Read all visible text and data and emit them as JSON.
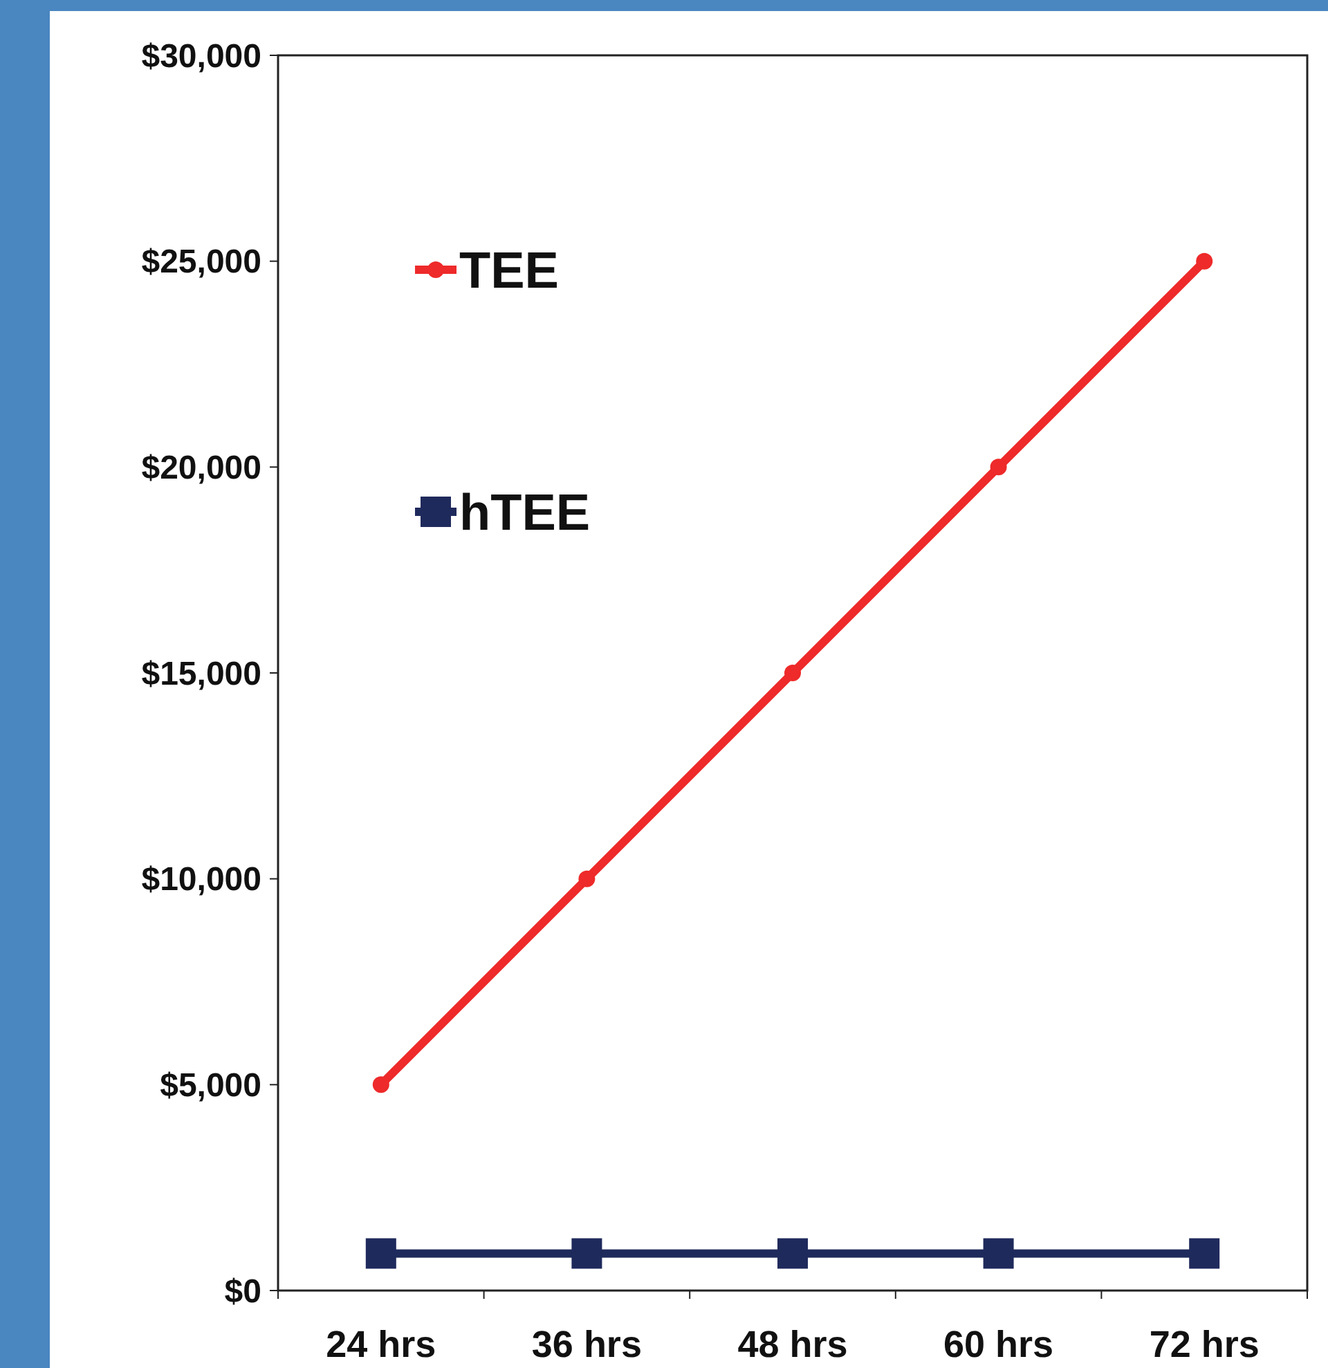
{
  "chart_data": {
    "type": "line",
    "categories": [
      "24 hrs",
      "36 hrs",
      "48 hrs",
      "60 hrs",
      "72 hrs"
    ],
    "series": [
      {
        "name": "TEE",
        "color": "#ee2a2a",
        "marker": "circle",
        "values": [
          5000,
          10000,
          15000,
          20000,
          25000
        ]
      },
      {
        "name": "hTEE",
        "color": "#1f2a5c",
        "marker": "square",
        "values": [
          900,
          900,
          900,
          900,
          900
        ]
      }
    ],
    "ylim": [
      0,
      30000
    ],
    "yticks": [
      {
        "value": 0,
        "label": "$0"
      },
      {
        "value": 5000,
        "label": "$5,000"
      },
      {
        "value": 10000,
        "label": "$10,000"
      },
      {
        "value": 15000,
        "label": "$15,000"
      },
      {
        "value": 20000,
        "label": "$20,000"
      },
      {
        "value": 25000,
        "label": "$25,000"
      },
      {
        "value": 30000,
        "label": "$30,000"
      }
    ],
    "grid": false,
    "legend": "top left"
  }
}
